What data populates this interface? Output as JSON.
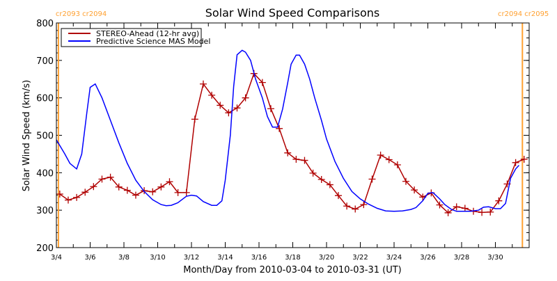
{
  "chart_data": {
    "type": "line",
    "title": "Solar Wind Speed Comparisons",
    "xlabel": "Month/Day from 2010-03-04 to 2010-03-31 (UT)",
    "ylabel": "Solar Wind Speed (km/s)",
    "xlim_days": [
      0,
      28
    ],
    "ylim": [
      200,
      800
    ],
    "y_ticks": [
      200,
      300,
      400,
      500,
      600,
      700,
      800
    ],
    "x_tick_labels": [
      "3/4",
      "3/6",
      "3/8",
      "3/10",
      "3/12",
      "3/14",
      "3/16",
      "3/18",
      "3/20",
      "3/22",
      "3/24",
      "3/26",
      "3/28",
      "3/30"
    ],
    "x_tick_days": [
      0,
      2,
      4,
      6,
      8,
      10,
      12,
      14,
      16,
      18,
      20,
      22,
      24,
      26
    ],
    "grid": false,
    "legend_position": "top-left",
    "carrington_markers": [
      {
        "day": 0.12,
        "label": "cr2093 cr2094",
        "color": "#ffa030"
      },
      {
        "day": 27.6,
        "label": "cr2094 cr2095",
        "color": "#ffa030"
      }
    ],
    "series": [
      {
        "name": "STEREO-Ahead (12-hr avg)",
        "color": "#b00000",
        "markers": true,
        "x": [
          0.2,
          0.7,
          1.2,
          1.7,
          2.2,
          2.7,
          3.2,
          3.7,
          4.2,
          4.7,
          5.2,
          5.7,
          6.2,
          6.7,
          7.2,
          7.7,
          8.2,
          8.7,
          9.2,
          9.7,
          10.2,
          10.7,
          11.2,
          11.7,
          12.2,
          12.7,
          13.2,
          13.7,
          14.2,
          14.7,
          15.2,
          15.7,
          16.2,
          16.7,
          17.2,
          17.7,
          18.2,
          18.7,
          19.2,
          19.7,
          20.2,
          20.7,
          21.2,
          21.7,
          22.2,
          22.7,
          23.2,
          23.7,
          24.2,
          24.7,
          25.2,
          25.7,
          26.2,
          26.7,
          27.2,
          27.7
        ],
        "y": [
          343,
          327,
          334,
          348,
          363,
          383,
          388,
          362,
          353,
          340,
          352,
          349,
          362,
          376,
          347,
          347,
          543,
          637,
          607,
          580,
          560,
          573,
          600,
          665,
          641,
          571,
          518,
          453,
          436,
          433,
          399,
          382,
          368,
          339,
          311,
          303,
          315,
          383,
          447,
          435,
          421,
          377,
          354,
          335,
          346,
          314,
          293,
          309,
          305,
          297,
          294,
          295,
          325,
          370,
          427,
          436
        ]
      },
      {
        "name": "Predictive Science MAS Model",
        "color": "#0000ff",
        "markers": false,
        "x": [
          0,
          0.5,
          0.8,
          1.2,
          1.5,
          1.8,
          2.0,
          2.3,
          2.7,
          3.2,
          3.7,
          4.2,
          4.7,
          5.2,
          5.7,
          6.2,
          6.5,
          6.8,
          7.2,
          7.7,
          8.0,
          8.3,
          8.7,
          9.2,
          9.5,
          9.8,
          10.0,
          10.3,
          10.5,
          10.7,
          11.0,
          11.2,
          11.5,
          11.8,
          12.2,
          12.5,
          12.8,
          13.1,
          13.4,
          13.7,
          13.9,
          14.2,
          14.4,
          14.7,
          15.0,
          15.3,
          15.7,
          16.0,
          16.5,
          17.0,
          17.5,
          18.0,
          18.5,
          19.0,
          19.5,
          20.0,
          20.5,
          21.0,
          21.3,
          21.7,
          22.0,
          22.3,
          22.7,
          23.0,
          23.4,
          23.7,
          24.5,
          25.0,
          25.3,
          25.6,
          26.0,
          26.3,
          26.6,
          26.9,
          27.2,
          27.4
        ],
        "y": [
          488,
          450,
          425,
          410,
          450,
          560,
          628,
          637,
          600,
          540,
          480,
          425,
          380,
          350,
          328,
          315,
          312,
          313,
          320,
          337,
          340,
          338,
          323,
          313,
          313,
          325,
          380,
          500,
          630,
          715,
          727,
          722,
          700,
          650,
          600,
          550,
          522,
          522,
          570,
          640,
          690,
          714,
          714,
          690,
          650,
          600,
          540,
          490,
          430,
          385,
          350,
          330,
          316,
          305,
          298,
          297,
          298,
          302,
          307,
          325,
          345,
          347,
          330,
          315,
          302,
          297,
          297,
          300,
          308,
          309,
          304,
          304,
          318,
          385,
          410,
          420
        ]
      }
    ]
  }
}
